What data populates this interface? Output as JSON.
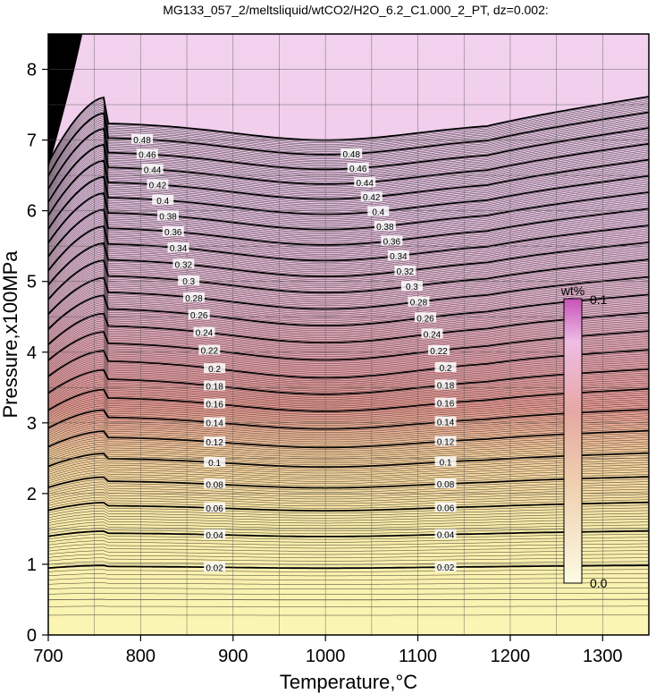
{
  "chart_data": {
    "type": "heatmap",
    "title": "MG133_057_2/meltsliquid/wtCO2/H2O_6.2_C1.000_2_PT, dz=0.002:",
    "xlabel": "Temperature,°C",
    "ylabel": "Pressure,x100MPa",
    "xlim": [
      700,
      1350
    ],
    "ylim": [
      0,
      8.5
    ],
    "xticks": [
      "700",
      "800",
      "900",
      "1000",
      "1100",
      "1200",
      "1300"
    ],
    "yticks": [
      "0",
      "1",
      "2",
      "3",
      "4",
      "5",
      "6",
      "7",
      "8"
    ],
    "grid": true,
    "contour_interval": 0.002,
    "labeled_levels": [
      "0.02",
      "0.04",
      "0.06",
      "0.08",
      "0.1",
      "0.12",
      "0.14",
      "0.16",
      "0.18",
      "0.2",
      "0.22",
      "0.24",
      "0.26",
      "0.28",
      "0.3",
      "0.32",
      "0.34",
      "0.36",
      "0.38",
      "0.4",
      "0.42",
      "0.44",
      "0.46",
      "0.48"
    ],
    "colorbar": {
      "unit": "wt%",
      "min_label": "0.0",
      "max_label": "0.1",
      "colors": [
        "#fbf5bf",
        "#f0c4a8",
        "#e8a6a8",
        "#f0b8e2",
        "#c84db8"
      ]
    },
    "background_colors": {
      "low": "#faf6b6",
      "mid": "#ee9e9a",
      "high": "#f0cfee"
    }
  }
}
